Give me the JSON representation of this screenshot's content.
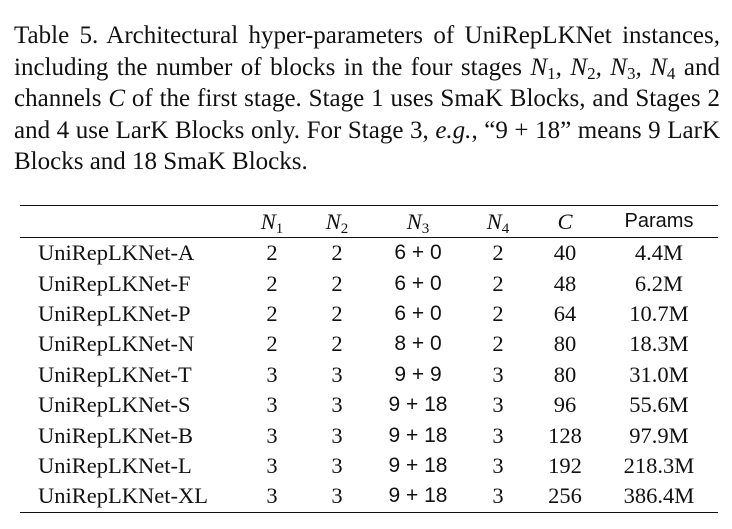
{
  "caption": {
    "label": "Table 5.",
    "part1": "Architectural hyper-parameters of UniRepLKNet instances, including the number of blocks in the four stages ",
    "part2": " and channels ",
    "part3": " of the first stage. Stage 1 uses SmaK Blocks, and Stages 2 and 4 use LarK Blocks only. For Stage 3, ",
    "eg": "e.g.",
    "part4": ", “9 + 18” means 9 LarK Blocks and 18 SmaK Blocks.",
    "math_stages": "N₁, N₂, N₃, N₄",
    "math_channels": "C"
  },
  "table": {
    "headers": {
      "name": "",
      "n1": {
        "base": "N",
        "sub": "1"
      },
      "n2": {
        "base": "N",
        "sub": "2"
      },
      "n3": {
        "base": "N",
        "sub": "3"
      },
      "n4": {
        "base": "N",
        "sub": "4"
      },
      "c": "C",
      "params": "Params"
    },
    "rows": [
      {
        "name": "UniRepLKNet-A",
        "n1": "2",
        "n2": "2",
        "n3": "6 + 0",
        "n4": "2",
        "c": "40",
        "params": "4.4M"
      },
      {
        "name": "UniRepLKNet-F",
        "n1": "2",
        "n2": "2",
        "n3": "6 + 0",
        "n4": "2",
        "c": "48",
        "params": "6.2M"
      },
      {
        "name": "UniRepLKNet-P",
        "n1": "2",
        "n2": "2",
        "n3": "6 + 0",
        "n4": "2",
        "c": "64",
        "params": "10.7M"
      },
      {
        "name": "UniRepLKNet-N",
        "n1": "2",
        "n2": "2",
        "n3": "8 + 0",
        "n4": "2",
        "c": "80",
        "params": "18.3M"
      },
      {
        "name": "UniRepLKNet-T",
        "n1": "3",
        "n2": "3",
        "n3": "9 + 9",
        "n4": "3",
        "c": "80",
        "params": "31.0M"
      },
      {
        "name": "UniRepLKNet-S",
        "n1": "3",
        "n2": "3",
        "n3": "9 + 18",
        "n4": "3",
        "c": "96",
        "params": "55.6M"
      },
      {
        "name": "UniRepLKNet-B",
        "n1": "3",
        "n2": "3",
        "n3": "9 + 18",
        "n4": "3",
        "c": "128",
        "params": "97.9M"
      },
      {
        "name": "UniRepLKNet-L",
        "n1": "3",
        "n2": "3",
        "n3": "9 + 18",
        "n4": "3",
        "c": "192",
        "params": "218.3M"
      },
      {
        "name": "UniRepLKNet-XL",
        "n1": "3",
        "n2": "3",
        "n3": "9 + 18",
        "n4": "3",
        "c": "256",
        "params": "386.4M"
      }
    ]
  }
}
